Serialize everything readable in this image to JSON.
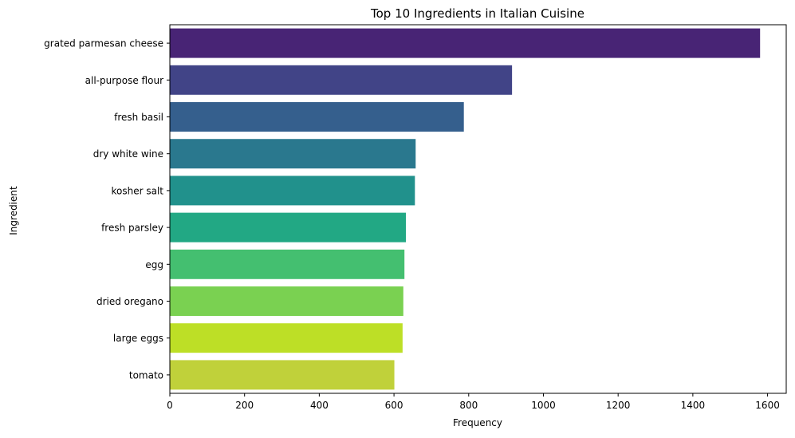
{
  "chart_data": {
    "type": "bar",
    "orientation": "horizontal",
    "title": "Top 10 Ingredients in Italian Cuisine",
    "xlabel": "Frequency",
    "ylabel": "Ingredient",
    "categories": [
      "grated parmesan cheese",
      "all-purpose flour",
      "fresh basil",
      "dry white wine",
      "kosher salt",
      "fresh parsley",
      "egg",
      "dried oregano",
      "large eggs",
      "tomato"
    ],
    "values": [
      1580,
      916,
      787,
      658,
      656,
      632,
      628,
      625,
      623,
      601
    ],
    "colors": [
      "#482475",
      "#414487",
      "#355f8d",
      "#2a788e",
      "#21918c",
      "#22a884",
      "#44bf70",
      "#7ad151",
      "#bddf26",
      "#c0d13a"
    ],
    "xlim": [
      0,
      1650
    ],
    "xticks": [
      0,
      200,
      400,
      600,
      800,
      1000,
      1200,
      1400,
      1600
    ],
    "grid": false,
    "legend": "none"
  }
}
